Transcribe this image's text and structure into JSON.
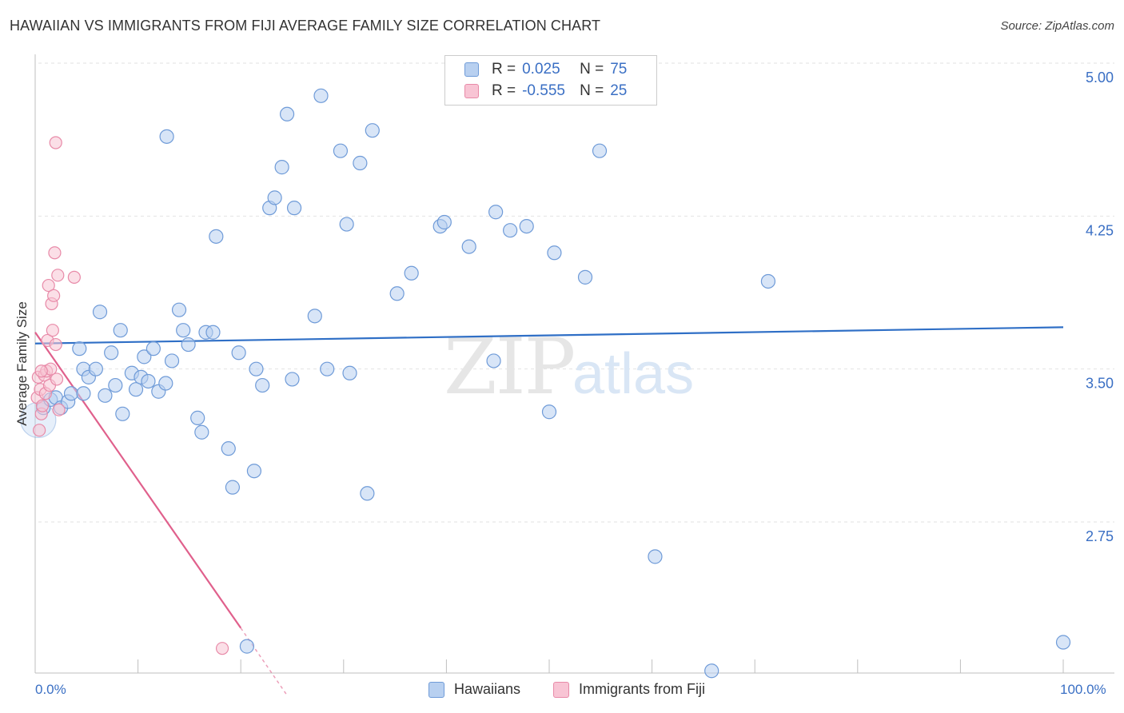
{
  "header": {
    "title": "HAWAIIAN VS IMMIGRANTS FROM FIJI AVERAGE FAMILY SIZE CORRELATION CHART",
    "source": "Source: ZipAtlas.com"
  },
  "legend": {
    "rows": [
      {
        "r_label": "R =",
        "r_value": "0.025",
        "n_label": "N =",
        "n_value": "75"
      },
      {
        "r_label": "R =",
        "r_value": "-0.555",
        "n_label": "N =",
        "n_value": "25"
      }
    ],
    "bottom": [
      {
        "label": "Hawaiians"
      },
      {
        "label": "Immigrants from Fiji"
      }
    ]
  },
  "colors": {
    "blue_fill": "#b8d0f0",
    "blue_stroke": "#6f9bd8",
    "blue_line": "#2f6fc6",
    "pink_fill": "#f8c4d4",
    "pink_stroke": "#e88aa8",
    "pink_line": "#e0608c",
    "grid": "#e2e2e2",
    "tick_label": "#3a6fc4"
  },
  "chart_data": {
    "type": "scatter",
    "title": "HAWAIIAN VS IMMIGRANTS FROM FIJI AVERAGE FAMILY SIZE CORRELATION CHART",
    "ylabel": "Average Family Size",
    "xlabel": "",
    "xlim": [
      0,
      100
    ],
    "ylim": [
      2.0,
      5.1
    ],
    "x_ticks": [
      "0.0%",
      "100.0%"
    ],
    "y_ticks": [
      2.75,
      3.5,
      4.25,
      5.0
    ],
    "y_tick_labels": [
      "2.75",
      "3.50",
      "4.25",
      "5.00"
    ],
    "grid": true,
    "watermark": "ZIPatlas",
    "series": [
      {
        "name": "Hawaiians",
        "r": 0.025,
        "n": 75,
        "trend": {
          "x": [
            0,
            100
          ],
          "y": [
            3.625,
            3.705
          ]
        },
        "points": [
          [
            0.3,
            3.25
          ],
          [
            0.8,
            3.31
          ],
          [
            1.5,
            3.35
          ],
          [
            2.0,
            3.36
          ],
          [
            2.5,
            3.31
          ],
          [
            3.2,
            3.34
          ],
          [
            3.5,
            3.38
          ],
          [
            4.3,
            3.6
          ],
          [
            4.7,
            3.38
          ],
          [
            4.7,
            3.5
          ],
          [
            5.2,
            3.46
          ],
          [
            5.9,
            3.5
          ],
          [
            6.3,
            3.78
          ],
          [
            6.8,
            3.37
          ],
          [
            7.4,
            3.58
          ],
          [
            7.8,
            3.42
          ],
          [
            8.5,
            3.28
          ],
          [
            8.3,
            3.69
          ],
          [
            9.4,
            3.48
          ],
          [
            9.8,
            3.4
          ],
          [
            10.3,
            3.46
          ],
          [
            10.6,
            3.56
          ],
          [
            11.0,
            3.44
          ],
          [
            11.5,
            3.6
          ],
          [
            12.0,
            3.39
          ],
          [
            12.7,
            3.43
          ],
          [
            12.8,
            4.64
          ],
          [
            13.3,
            3.54
          ],
          [
            14.0,
            3.79
          ],
          [
            14.4,
            3.69
          ],
          [
            14.9,
            3.62
          ],
          [
            15.8,
            3.26
          ],
          [
            16.2,
            3.19
          ],
          [
            16.6,
            3.68
          ],
          [
            17.3,
            3.68
          ],
          [
            17.6,
            4.15
          ],
          [
            18.8,
            3.11
          ],
          [
            19.2,
            2.92
          ],
          [
            19.8,
            3.58
          ],
          [
            20.6,
            2.14
          ],
          [
            21.5,
            3.5
          ],
          [
            21.3,
            3.0
          ],
          [
            22.1,
            3.42
          ],
          [
            22.8,
            4.29
          ],
          [
            23.3,
            4.34
          ],
          [
            24.0,
            4.49
          ],
          [
            24.5,
            4.75
          ],
          [
            25.0,
            3.45
          ],
          [
            25.2,
            4.29
          ],
          [
            27.2,
            3.76
          ],
          [
            27.8,
            4.84
          ],
          [
            28.4,
            3.5
          ],
          [
            29.7,
            4.57
          ],
          [
            30.3,
            4.21
          ],
          [
            30.6,
            3.48
          ],
          [
            31.6,
            4.51
          ],
          [
            32.3,
            2.89
          ],
          [
            32.8,
            4.67
          ],
          [
            35.2,
            3.87
          ],
          [
            36.6,
            3.97
          ],
          [
            39.4,
            4.2
          ],
          [
            39.8,
            4.22
          ],
          [
            42.2,
            4.1
          ],
          [
            44.6,
            3.54
          ],
          [
            44.8,
            4.27
          ],
          [
            46.2,
            4.18
          ],
          [
            47.8,
            4.2
          ],
          [
            50.0,
            3.29
          ],
          [
            50.5,
            4.07
          ],
          [
            53.5,
            3.95
          ],
          [
            54.9,
            4.57
          ],
          [
            60.3,
            2.58
          ],
          [
            65.8,
            2.02
          ],
          [
            71.3,
            3.93
          ],
          [
            100.0,
            2.16
          ]
        ]
      },
      {
        "name": "Immigrants from Fiji",
        "r": -0.555,
        "n": 25,
        "trend": {
          "x": [
            0,
            20
          ],
          "y": [
            3.68,
            2.23
          ]
        },
        "trend_dashed": {
          "x": [
            20,
            24.5
          ],
          "y": [
            2.23,
            1.9
          ]
        },
        "points": [
          [
            0.2,
            3.36
          ],
          [
            0.3,
            3.46
          ],
          [
            0.4,
            3.2
          ],
          [
            0.5,
            3.4
          ],
          [
            0.6,
            3.28
          ],
          [
            0.7,
            3.32
          ],
          [
            0.9,
            3.47
          ],
          [
            1.0,
            3.38
          ],
          [
            1.1,
            3.49
          ],
          [
            1.2,
            3.64
          ],
          [
            1.3,
            3.91
          ],
          [
            1.4,
            3.42
          ],
          [
            1.5,
            3.5
          ],
          [
            1.6,
            3.82
          ],
          [
            1.7,
            3.69
          ],
          [
            1.8,
            3.86
          ],
          [
            1.9,
            4.07
          ],
          [
            2.0,
            4.61
          ],
          [
            2.1,
            3.45
          ],
          [
            2.2,
            3.96
          ],
          [
            2.3,
            3.3
          ],
          [
            2.0,
            3.62
          ],
          [
            3.8,
            3.95
          ],
          [
            0.6,
            3.49
          ],
          [
            18.2,
            2.13
          ]
        ]
      }
    ]
  }
}
